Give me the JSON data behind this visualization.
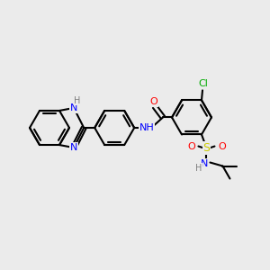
{
  "bg_color": "#ebebeb",
  "bond_color": "#000000",
  "bond_width": 1.5,
  "double_sep": 2.5,
  "atom_colors": {
    "N": "#0000ff",
    "O": "#ff0000",
    "S": "#cccc00",
    "Cl": "#00aa00",
    "C": "#000000",
    "H": "#7f7f7f"
  },
  "font_size": 8,
  "font_size_small": 7
}
